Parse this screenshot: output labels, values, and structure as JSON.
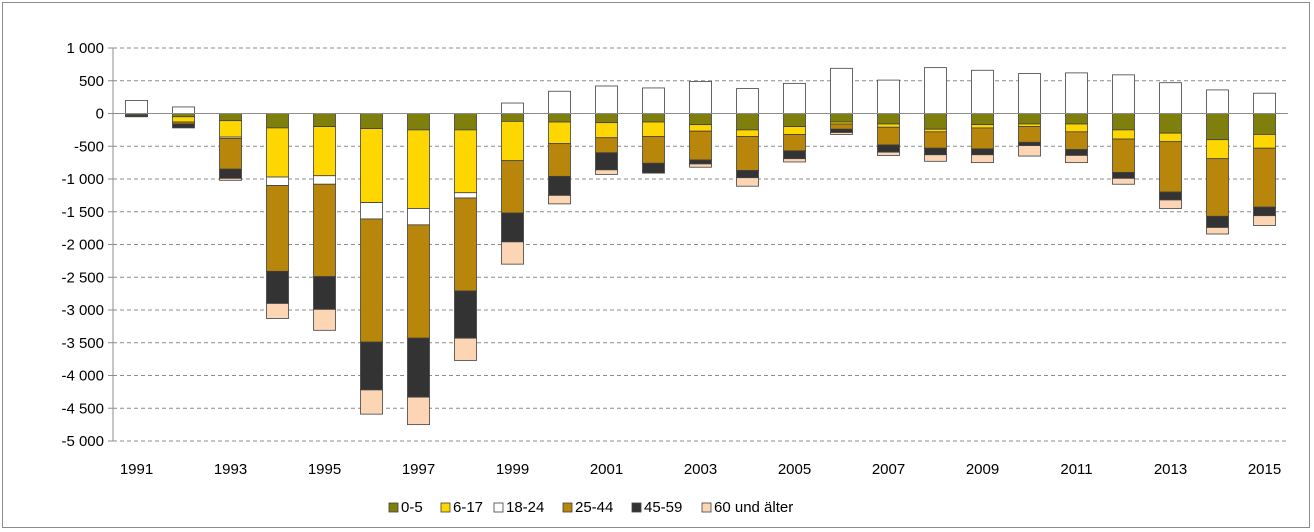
{
  "chart_data": {
    "type": "bar",
    "stacked": true,
    "title": "",
    "xlabel": "",
    "ylabel": "",
    "ylim": [
      -5000,
      1000
    ],
    "yticks": [
      1000,
      500,
      0,
      -500,
      -1000,
      -1500,
      -2000,
      -2500,
      -3000,
      -3500,
      -4000,
      -4500,
      -5000
    ],
    "ytick_labels": [
      "1 000",
      "500",
      "0",
      "-500",
      "-1 000",
      "-1 500",
      "-2 000",
      "-2 500",
      "-3 000",
      "-3 500",
      "-4 000",
      "-4 500",
      "-5 000"
    ],
    "categories": [
      "1991",
      "1992",
      "1993",
      "1994",
      "1995",
      "1996",
      "1997",
      "1998",
      "1999",
      "2000",
      "2001",
      "2002",
      "2003",
      "2004",
      "2005",
      "2006",
      "2007",
      "2008",
      "2009",
      "2010",
      "2011",
      "2012",
      "2013",
      "2014",
      "2015"
    ],
    "xtick_labels": [
      "1991",
      "",
      "1993",
      "",
      "1995",
      "",
      "1997",
      "",
      "1999",
      "",
      "2001",
      "",
      "2003",
      "",
      "2005",
      "",
      "2007",
      "",
      "2009",
      "",
      "2011",
      "",
      "2013",
      "",
      "2015"
    ],
    "grid": "horizontal-dashed",
    "legend_position": "bottom",
    "series": [
      {
        "name": "0-5",
        "color": "#7f7f0e",
        "values": [
          -20,
          -50,
          -110,
          -220,
          -200,
          -230,
          -250,
          -250,
          -120,
          -130,
          -140,
          -130,
          -170,
          -250,
          -200,
          -130,
          -160,
          -240,
          -170,
          -160,
          -160,
          -250,
          -300,
          -400,
          -320
        ]
      },
      {
        "name": "6-17",
        "color": "#ffd700",
        "values": [
          -10,
          -80,
          -250,
          -750,
          -750,
          -1130,
          -1200,
          -960,
          -600,
          -330,
          -230,
          -220,
          -100,
          -100,
          -120,
          -30,
          -50,
          -40,
          -50,
          -40,
          -120,
          -140,
          -130,
          -290,
          -210
        ]
      },
      {
        "name": "18-24",
        "color": "#ffffff",
        "values": [
          200,
          100,
          -20,
          -130,
          -130,
          -250,
          -250,
          -80,
          160,
          340,
          420,
          390,
          490,
          380,
          460,
          690,
          510,
          700,
          660,
          610,
          620,
          590,
          470,
          360,
          310
        ]
      },
      {
        "name": "25-44",
        "color": "#b8860b",
        "values": [
          -10,
          -30,
          -470,
          -1310,
          -1410,
          -1880,
          -1730,
          -1420,
          -800,
          -500,
          -230,
          -410,
          -440,
          -520,
          -250,
          -80,
          -270,
          -250,
          -320,
          -240,
          -270,
          -510,
          -770,
          -880,
          -900
        ]
      },
      {
        "name": "45-59",
        "color": "#333333",
        "values": [
          -10,
          -60,
          -140,
          -490,
          -500,
          -730,
          -900,
          -720,
          -440,
          -290,
          -260,
          -150,
          -60,
          -110,
          -120,
          -50,
          -110,
          -100,
          -90,
          -50,
          -90,
          -90,
          -120,
          -170,
          -130
        ]
      },
      {
        "name": "60 und älter",
        "color": "#fcd5b4",
        "values": [
          0,
          0,
          -30,
          -230,
          -320,
          -370,
          -420,
          -340,
          -340,
          -130,
          -70,
          0,
          -50,
          -130,
          -50,
          -30,
          -50,
          -100,
          -120,
          -160,
          -110,
          -90,
          -130,
          -100,
          -150
        ]
      }
    ]
  }
}
